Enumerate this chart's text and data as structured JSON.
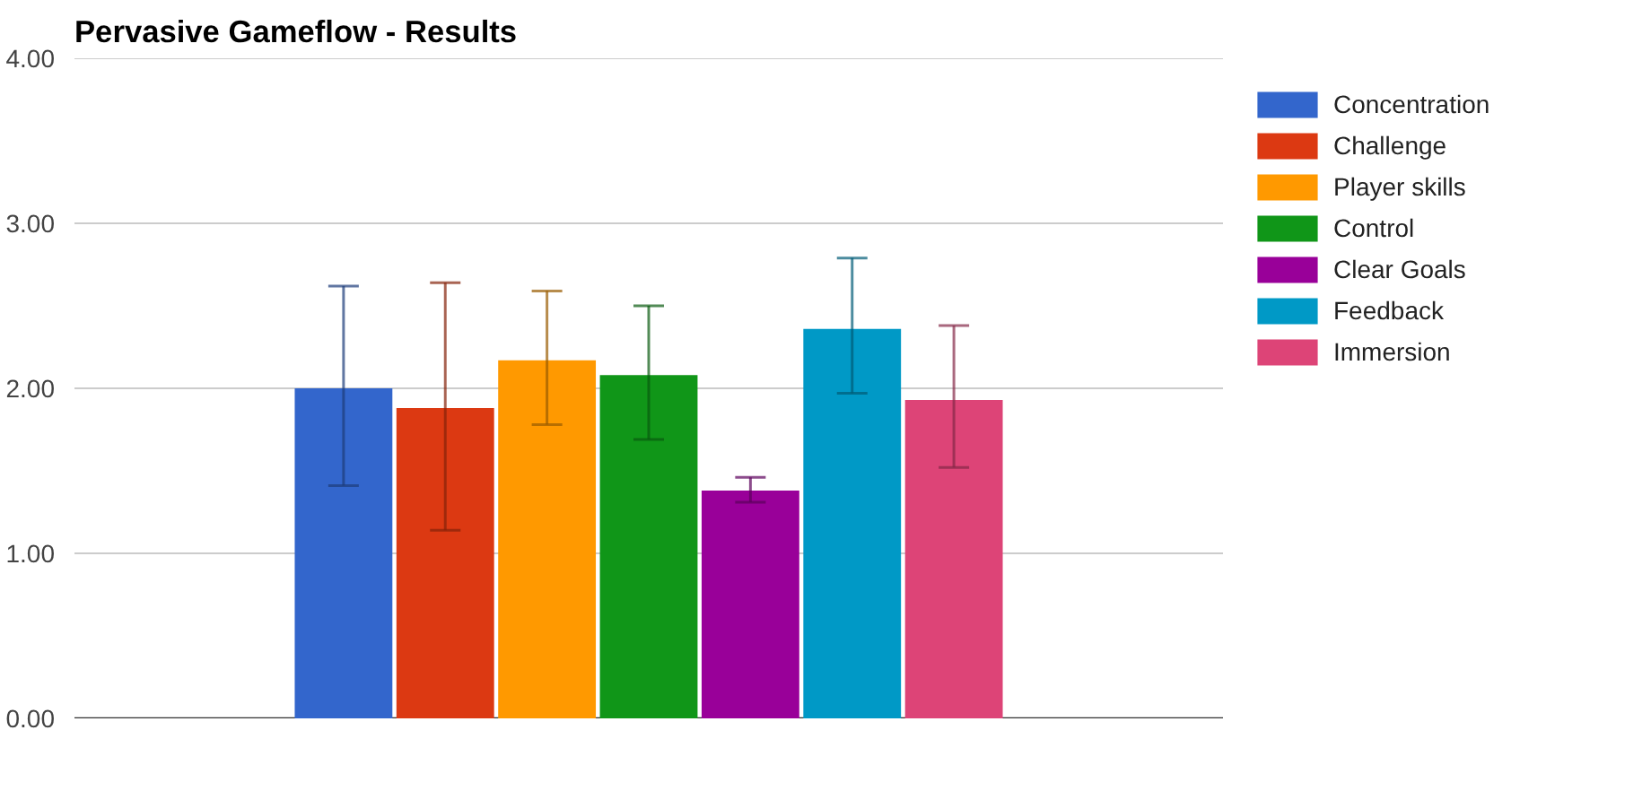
{
  "chart_data": {
    "type": "bar",
    "title": "Pervasive Gameflow - Results",
    "categories": [
      null
    ],
    "series": [
      {
        "name": "Concentration",
        "color": "#3366cc",
        "values": [
          2.0
        ],
        "errors": [
          [
            1.41,
            2.62
          ]
        ]
      },
      {
        "name": "Challenge",
        "color": "#dc3912",
        "values": [
          1.88
        ],
        "errors": [
          [
            1.14,
            2.64
          ]
        ]
      },
      {
        "name": "Player skills",
        "color": "#ff9900",
        "values": [
          2.17
        ],
        "errors": [
          [
            1.78,
            2.59
          ]
        ]
      },
      {
        "name": "Control",
        "color": "#109618",
        "values": [
          2.08
        ],
        "errors": [
          [
            1.69,
            2.5
          ]
        ]
      },
      {
        "name": "Clear Goals",
        "color": "#990099",
        "values": [
          1.38
        ],
        "errors": [
          [
            1.31,
            1.46
          ]
        ]
      },
      {
        "name": "Feedback",
        "color": "#0099c6",
        "values": [
          2.36
        ],
        "errors": [
          [
            1.97,
            2.79
          ]
        ]
      },
      {
        "name": "Immersion",
        "color": "#dd4477",
        "values": [
          1.93
        ],
        "errors": [
          [
            1.52,
            2.38
          ]
        ]
      }
    ],
    "ylim": [
      0,
      4
    ],
    "yticks": [
      {
        "value": 0,
        "label": "0.00"
      },
      {
        "value": 1,
        "label": "1.00"
      },
      {
        "value": 2,
        "label": "2.00"
      },
      {
        "value": 3,
        "label": "3.00"
      },
      {
        "value": 4,
        "label": "4.00"
      }
    ],
    "grid": "y",
    "legend": "right"
  }
}
